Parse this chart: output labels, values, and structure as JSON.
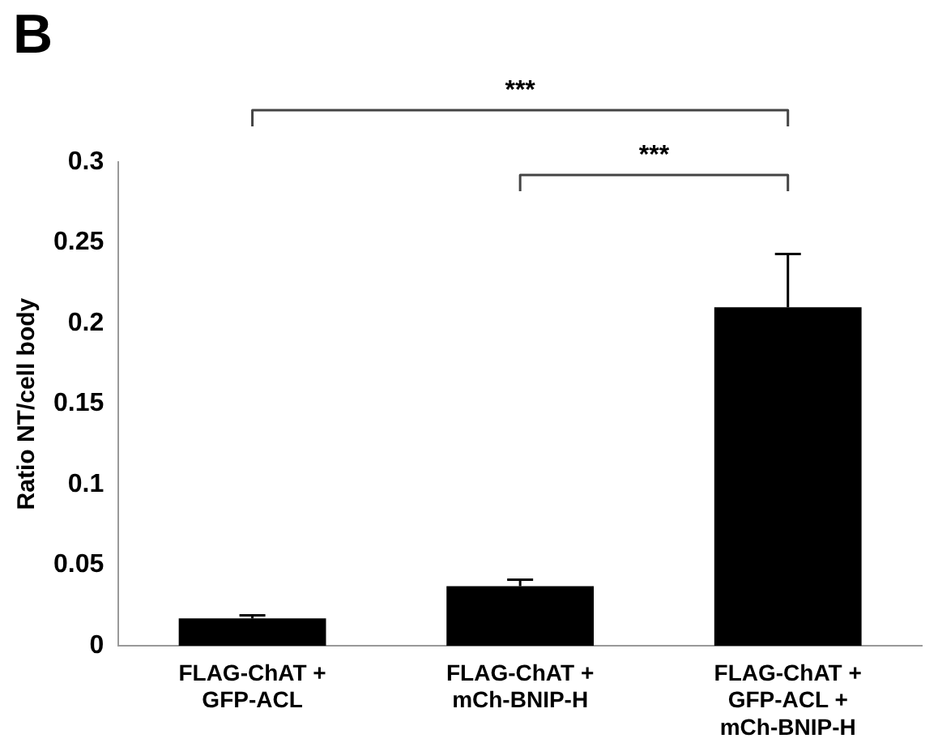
{
  "chart_data": {
    "type": "bar",
    "title": "B",
    "ylabel": "Ratio NT/cell body",
    "categories": [
      "FLAG-ChAT + GFP-ACL",
      "FLAG-ChAT + mCh-BNIP-H",
      "FLAG-ChAT + GFP-ACL + mCh-BNIP-H"
    ],
    "values": [
      0.017,
      0.037,
      0.21
    ],
    "color": "#000000",
    "errors": [
      [
        0.017,
        0.019
      ],
      [
        0.037,
        0.041
      ],
      [
        0.21,
        0.243
      ]
    ],
    "ylim": [
      0,
      0.3
    ],
    "yticks": [
      0,
      0.05,
      0.1,
      0.15,
      0.2,
      0.25,
      0.3
    ],
    "grid": false,
    "legend": false,
    "annotations": [
      "***",
      "***"
    ]
  }
}
